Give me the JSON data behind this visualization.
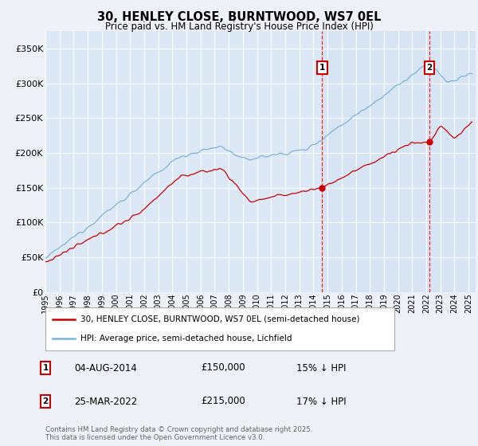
{
  "title": "30, HENLEY CLOSE, BURNTWOOD, WS7 0EL",
  "subtitle": "Price paid vs. HM Land Registry's House Price Index (HPI)",
  "hpi_label": "HPI: Average price, semi-detached house, Lichfield",
  "property_label": "30, HENLEY CLOSE, BURNTWOOD, WS7 0EL (semi-detached house)",
  "hpi_color": "#7ab4d8",
  "property_color": "#cc0000",
  "background_color": "#eef2f8",
  "plot_bg_color": "#dce8f5",
  "shade_color": "#ccdff0",
  "annotation1": {
    "label": "1",
    "date": "04-AUG-2014",
    "price": "£150,000",
    "note": "15% ↓ HPI"
  },
  "annotation2": {
    "label": "2",
    "date": "25-MAR-2022",
    "price": "£215,000",
    "note": "17% ↓ HPI"
  },
  "footer": "Contains HM Land Registry data © Crown copyright and database right 2025.\nThis data is licensed under the Open Government Licence v3.0.",
  "ylim": [
    0,
    375000
  ],
  "yticks": [
    0,
    50000,
    100000,
    150000,
    200000,
    250000,
    300000,
    350000
  ],
  "year_start": 1995,
  "year_end": 2025
}
